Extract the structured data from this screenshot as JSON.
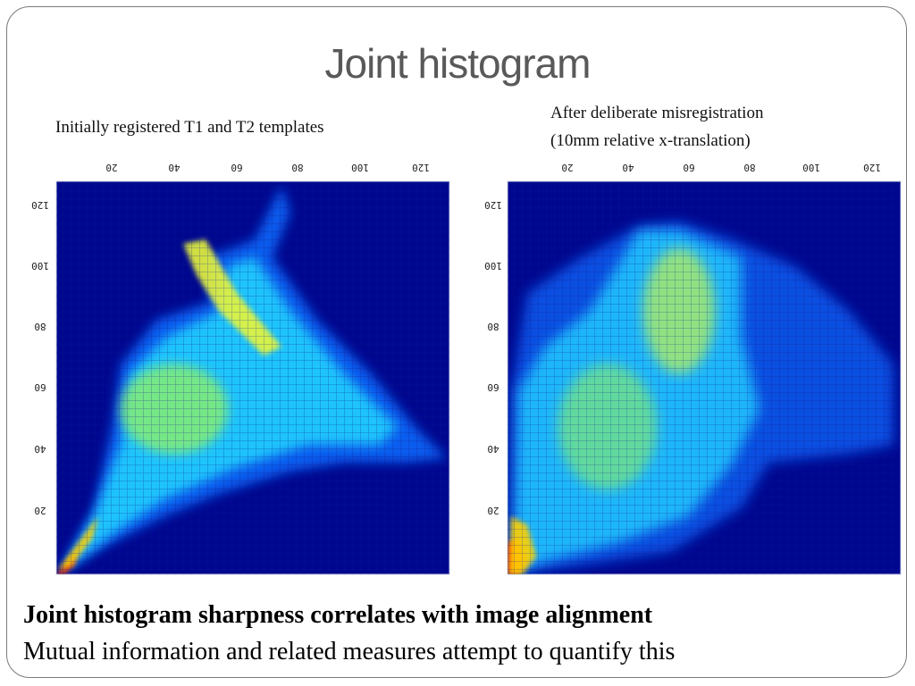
{
  "slide": {
    "title": "Joint histogram",
    "left_caption": "Initially registered T1 and T2 templates",
    "right_caption_line1": "After deliberate misregistration",
    "right_caption_line2": "(10mm relative x-translation)",
    "statement": "Joint histogram sharpness correlates with image alignment",
    "subtext": "Mutual information and related measures attempt to quantify this"
  },
  "histograms": [
    {
      "name": "registered",
      "x_ticks": [
        "20",
        "40",
        "60",
        "80",
        "100",
        "120"
      ],
      "y_ticks": [
        "120",
        "100",
        "80",
        "60",
        "40",
        "20"
      ],
      "background_color": "#00078f"
    },
    {
      "name": "misregistered",
      "x_ticks": [
        "20",
        "40",
        "60",
        "80",
        "100",
        "120"
      ],
      "y_ticks": [
        "120",
        "100",
        "80",
        "60",
        "40",
        "20"
      ],
      "background_color": "#00078f"
    }
  ]
}
